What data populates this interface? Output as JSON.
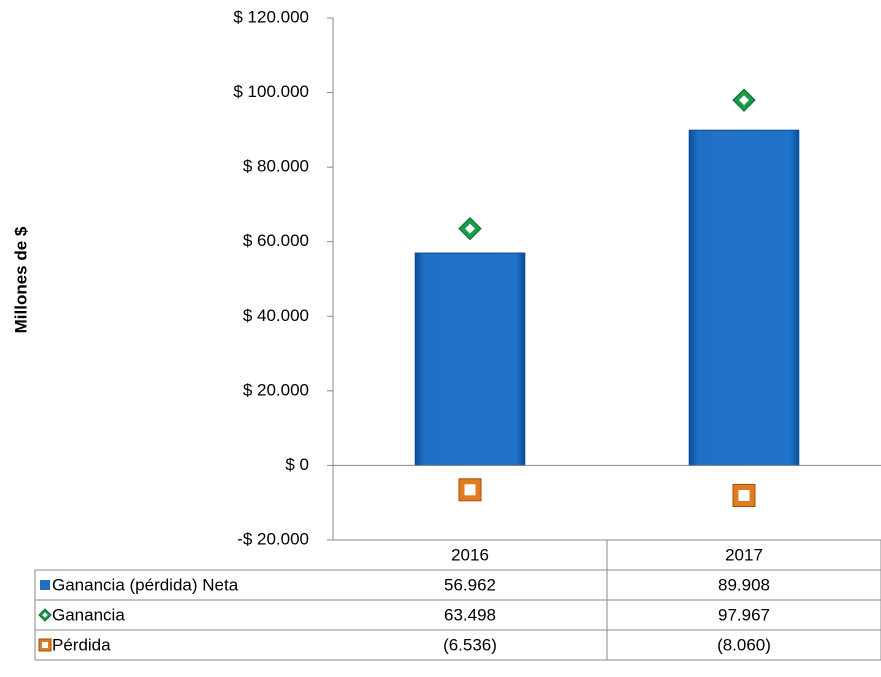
{
  "chart_data": {
    "type": "bar",
    "y_axis_label": "Millones de $",
    "categories": [
      "2016",
      "2017"
    ],
    "series": [
      {
        "name": "Ganancia (pérdida) Neta",
        "type": "bar",
        "color": "#1f6fc5",
        "values": [
          56962,
          89908
        ],
        "value_labels": [
          "56.962",
          "89.908"
        ]
      },
      {
        "name": "Ganancia",
        "type": "diamond",
        "color": "#1a9a4a",
        "values": [
          63498,
          97967
        ],
        "value_labels": [
          "63.498",
          "97.967"
        ]
      },
      {
        "name": "Pérdida",
        "type": "square",
        "color": "#e07b1f",
        "values": [
          -6536,
          -8060
        ],
        "value_labels": [
          "(6.536)",
          "(8.060)"
        ]
      }
    ],
    "ylim": [
      -20000,
      120000
    ],
    "yticks": [
      {
        "value": -20000,
        "label": "-$ 20.000"
      },
      {
        "value": 0,
        "label": "$ 0"
      },
      {
        "value": 20000,
        "label": "$ 20.000"
      },
      {
        "value": 40000,
        "label": "$ 40.000"
      },
      {
        "value": 60000,
        "label": "$ 60.000"
      },
      {
        "value": 80000,
        "label": "$ 80.000"
      },
      {
        "value": 100000,
        "label": "$ 100.000"
      },
      {
        "value": 120000,
        "label": "$ 120.000"
      }
    ]
  }
}
